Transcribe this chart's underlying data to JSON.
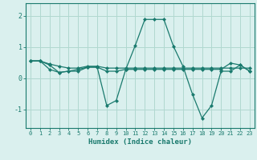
{
  "xlabel": "Humidex (Indice chaleur)",
  "bg_color": "#daf0ee",
  "plot_bg_color": "#daf0ee",
  "grid_color": "#b0d8d0",
  "line_color": "#1a7a6e",
  "spine_color": "#1a7a6e",
  "xlim": [
    -0.5,
    23.5
  ],
  "ylim": [
    -1.6,
    2.4
  ],
  "yticks": [
    -1,
    0,
    1,
    2
  ],
  "xticks": [
    0,
    1,
    2,
    3,
    4,
    5,
    6,
    7,
    8,
    9,
    10,
    11,
    12,
    13,
    14,
    15,
    16,
    17,
    18,
    19,
    20,
    21,
    22,
    23
  ],
  "series": [
    {
      "x": [
        0,
        1,
        2,
        3,
        4,
        5,
        6,
        7,
        8,
        9,
        10,
        11,
        12,
        13,
        14,
        15,
        16,
        17,
        18,
        19,
        20,
        21,
        22,
        23
      ],
      "y": [
        0.55,
        0.55,
        0.45,
        0.38,
        0.32,
        0.32,
        0.38,
        0.38,
        0.32,
        0.32,
        0.32,
        0.32,
        0.32,
        0.32,
        0.32,
        0.32,
        0.32,
        0.32,
        0.32,
        0.32,
        0.32,
        0.32,
        0.32,
        0.32
      ]
    },
    {
      "x": [
        0,
        1,
        2,
        3,
        4,
        5,
        6,
        7,
        8,
        9,
        10,
        11,
        12,
        13,
        14,
        15,
        16,
        17,
        18,
        19,
        20,
        21,
        22,
        23
      ],
      "y": [
        0.55,
        0.55,
        0.42,
        0.18,
        0.22,
        0.22,
        0.35,
        0.35,
        -0.88,
        -0.72,
        0.28,
        1.05,
        1.88,
        1.88,
        1.88,
        1.02,
        0.38,
        -0.52,
        -1.28,
        -0.88,
        0.22,
        0.22,
        0.42,
        0.22
      ]
    },
    {
      "x": [
        0,
        1,
        2,
        3,
        4,
        5,
        6,
        7,
        8,
        9,
        10,
        11,
        12,
        13,
        14,
        15,
        16,
        17,
        18,
        19,
        20,
        21,
        22,
        23
      ],
      "y": [
        0.55,
        0.55,
        0.28,
        0.18,
        0.22,
        0.28,
        0.35,
        0.35,
        0.22,
        0.22,
        0.28,
        0.28,
        0.28,
        0.28,
        0.28,
        0.28,
        0.28,
        0.28,
        0.28,
        0.28,
        0.28,
        0.48,
        0.42,
        0.22
      ]
    }
  ]
}
